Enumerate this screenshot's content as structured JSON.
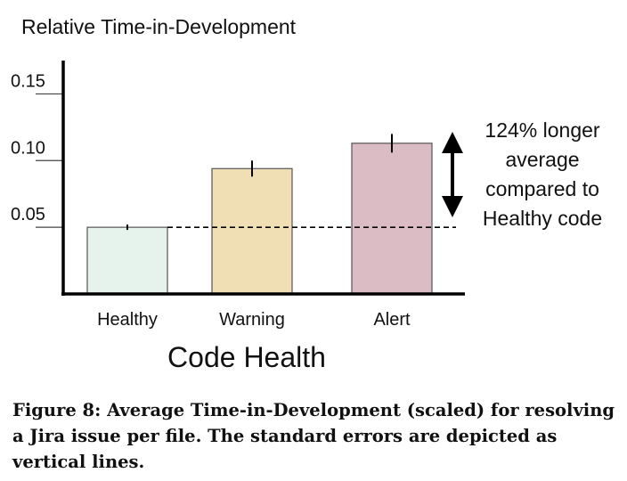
{
  "chart_data": {
    "type": "bar",
    "title": "Relative Time-in-Development",
    "xlabel": "Code Health",
    "ylabel": "",
    "categories": [
      "Healthy",
      "Warning",
      "Alert"
    ],
    "values": [
      0.05,
      0.094,
      0.113
    ],
    "errors": [
      0.002,
      0.006,
      0.007
    ],
    "ylim": [
      0,
      0.175
    ],
    "yticks": [
      0.05,
      0.1,
      0.15
    ],
    "ytick_labels": [
      "0.05",
      "0.10",
      "0.15"
    ],
    "bar_colors": [
      "#e6f3ec",
      "#f0deb4",
      "#dcbcc4"
    ],
    "bar_edge_color": "#555555",
    "reference_line": {
      "value": 0.05,
      "style": "dashed"
    },
    "annotation": {
      "lines": [
        "124% longer",
        "average",
        "compared to",
        "Healthy code"
      ]
    },
    "grid": false,
    "legend": "none"
  },
  "caption": "Figure 8: Average Time-in-Development (scaled) for resolving a Jira issue per file. The standard errors are depicted as vertical lines."
}
